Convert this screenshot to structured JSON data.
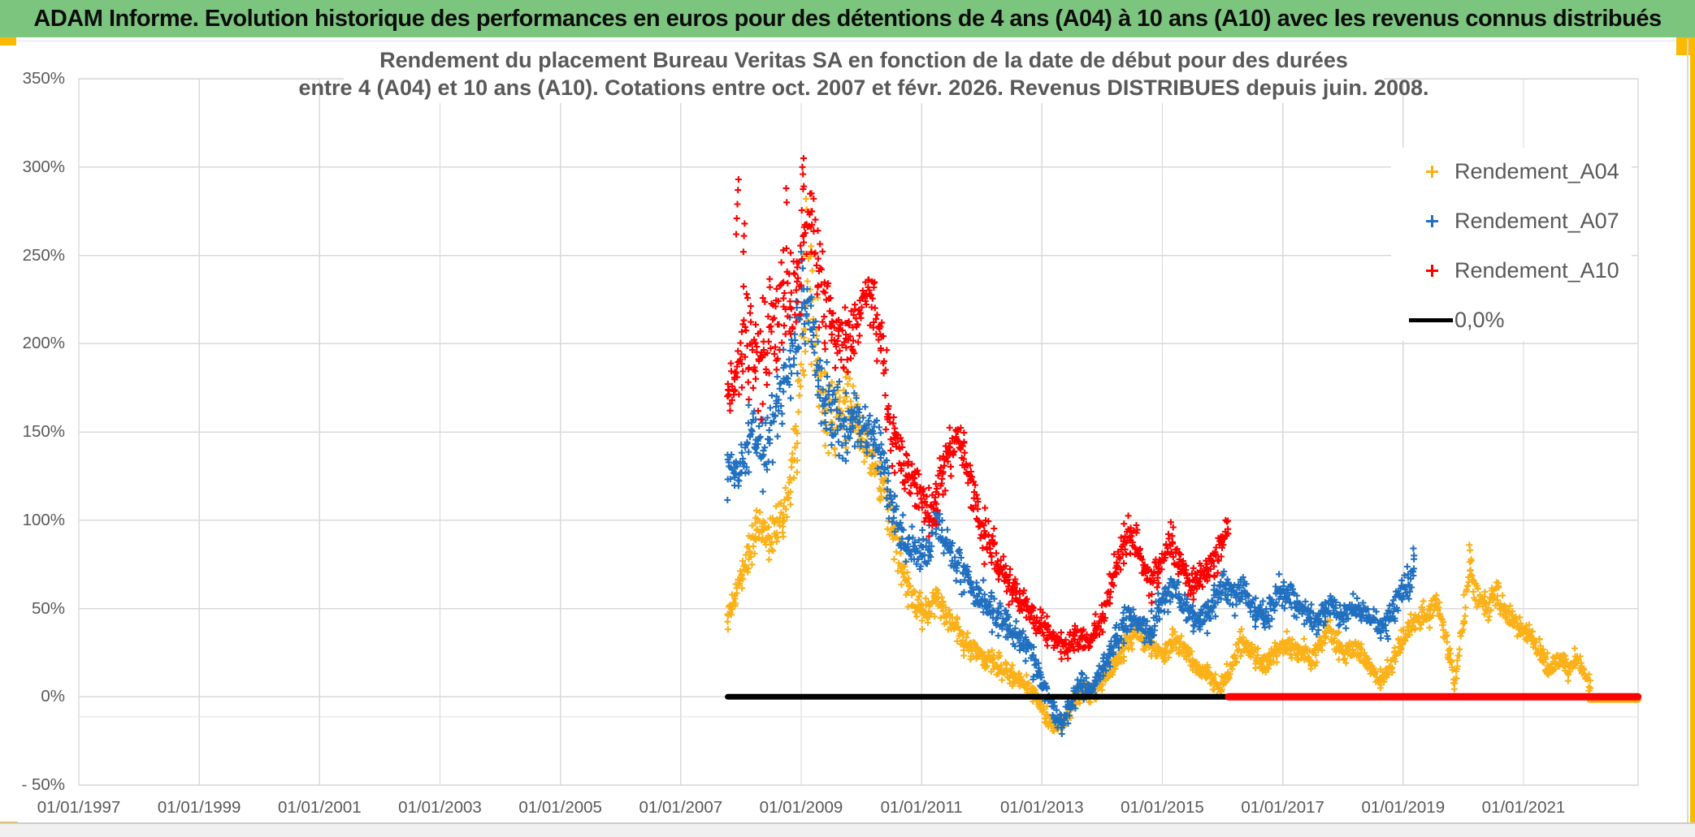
{
  "header": {
    "title": "ADAM Informe. Evolution historique des performances en euros pour des détentions de 4 ans (A04) à 10 ans (A10) avec les revenus connus distribués",
    "bg_color": "#7CC57F"
  },
  "frame": {
    "accent_color": "#FBBA00"
  },
  "chart_data": {
    "type": "scatter",
    "title_line1": "Rendement du placement Bureau Veritas SA en fonction de la date de début pour des durées",
    "title_line2": "entre 4 (A04) et 10 ans (A10). Cotations entre oct. 2007 et févr. 2026. Revenus DISTRIBUES depuis juin. 2008.",
    "text_color": "#595959",
    "gridline_color": "#D9D9D9",
    "grid": true,
    "legend_position": "upper-right",
    "x_range": [
      1997,
      2022.9
    ],
    "y_range": [
      -50,
      350
    ],
    "x_tick_years": [
      1997,
      1999,
      2001,
      2003,
      2005,
      2007,
      2009,
      2011,
      2013,
      2015,
      2017,
      2019,
      2021
    ],
    "x_tick_labels": [
      "01/01/1997",
      "01/01/1999",
      "01/01/2001",
      "01/01/2003",
      "01/01/2005",
      "01/01/2007",
      "01/01/2009",
      "01/01/2011",
      "01/01/2013",
      "01/01/2015",
      "01/01/2017",
      "01/01/2019",
      "01/01/2021"
    ],
    "y_ticks": [
      {
        "label": "350%",
        "value": 350
      },
      {
        "label": "300%",
        "value": 300
      },
      {
        "label": "250%",
        "value": 250
      },
      {
        "label": "200%",
        "value": 200
      },
      {
        "label": "150%",
        "value": 150
      },
      {
        "label": "100%",
        "value": 100
      },
      {
        "label": "50%",
        "value": 50
      },
      {
        "label": "0%",
        "value": 0
      },
      {
        "label": "- 50%",
        "value": -50
      }
    ],
    "legend": [
      {
        "label": "Rendement_A04",
        "marker": "plus",
        "color": "#FBB117"
      },
      {
        "label": "Rendement_A07",
        "marker": "plus",
        "color": "#2170C0"
      },
      {
        "label": "Rendement_A10",
        "marker": "plus",
        "color": "#FF0000"
      },
      {
        "label": "0,0%",
        "marker": "line",
        "color": "#000000"
      }
    ],
    "zero_line": {
      "label": "0,0%",
      "color": "#000000",
      "value": 0,
      "start": 2007.78,
      "end": 2016.1
    },
    "zero_tails": [
      {
        "series": "Rendement_A04",
        "color": "#FBB117",
        "value": 0,
        "start": 2022.1,
        "end": 2022.9
      },
      {
        "series": "Rendement_A10",
        "color": "#FF0000",
        "value": 0,
        "start": 2016.1,
        "end": 2022.9
      }
    ],
    "series": [
      {
        "name": "Rendement_A04",
        "color": "#FBB117",
        "marker": "plus",
        "start": 2007.78,
        "end": 2022.12,
        "anchors": [
          [
            2007.78,
            45,
            6
          ],
          [
            2007.9,
            55,
            9
          ],
          [
            2008.1,
            80,
            14
          ],
          [
            2008.3,
            95,
            14
          ],
          [
            2008.5,
            90,
            14
          ],
          [
            2008.7,
            105,
            16
          ],
          [
            2008.85,
            125,
            22
          ],
          [
            2009.0,
            195,
            45
          ],
          [
            2009.1,
            235,
            40
          ],
          [
            2009.2,
            225,
            40
          ],
          [
            2009.35,
            170,
            28
          ],
          [
            2009.5,
            150,
            24
          ],
          [
            2009.65,
            160,
            24
          ],
          [
            2009.8,
            168,
            22
          ],
          [
            2010.0,
            150,
            20
          ],
          [
            2010.2,
            132,
            18
          ],
          [
            2010.4,
            110,
            16
          ],
          [
            2010.6,
            85,
            14
          ],
          [
            2010.8,
            60,
            12
          ],
          [
            2011.0,
            46,
            11
          ],
          [
            2011.25,
            55,
            10
          ],
          [
            2011.5,
            42,
            10
          ],
          [
            2011.75,
            30,
            9
          ],
          [
            2012.0,
            22,
            9
          ],
          [
            2012.3,
            17,
            8
          ],
          [
            2012.6,
            10,
            8
          ],
          [
            2012.85,
            2,
            7
          ],
          [
            2013.05,
            -10,
            7
          ],
          [
            2013.2,
            -17,
            6
          ],
          [
            2013.4,
            -12,
            6
          ],
          [
            2013.55,
            -3,
            6
          ],
          [
            2013.7,
            4,
            6
          ],
          [
            2013.85,
            0,
            6
          ],
          [
            2014.0,
            8,
            6
          ],
          [
            2014.2,
            18,
            7
          ],
          [
            2014.4,
            30,
            8
          ],
          [
            2014.6,
            38,
            8
          ],
          [
            2014.8,
            28,
            7
          ],
          [
            2015.0,
            25,
            7
          ],
          [
            2015.2,
            32,
            8
          ],
          [
            2015.4,
            25,
            7
          ],
          [
            2015.6,
            17,
            7
          ],
          [
            2015.8,
            11,
            7
          ],
          [
            2015.95,
            4,
            6
          ],
          [
            2016.1,
            14,
            7
          ],
          [
            2016.3,
            30,
            9
          ],
          [
            2016.5,
            25,
            8
          ],
          [
            2016.7,
            18,
            8
          ],
          [
            2016.9,
            25,
            8
          ],
          [
            2017.1,
            30,
            8
          ],
          [
            2017.3,
            25,
            8
          ],
          [
            2017.5,
            21,
            8
          ],
          [
            2017.75,
            38,
            8
          ],
          [
            2018.0,
            25,
            8
          ],
          [
            2018.2,
            28,
            8
          ],
          [
            2018.4,
            21,
            7
          ],
          [
            2018.6,
            8,
            6
          ],
          [
            2018.8,
            18,
            7
          ],
          [
            2019.0,
            34,
            9
          ],
          [
            2019.2,
            42,
            9
          ],
          [
            2019.4,
            47,
            9
          ],
          [
            2019.55,
            54,
            9
          ],
          [
            2019.7,
            35,
            9
          ],
          [
            2019.85,
            8,
            7
          ],
          [
            2020.0,
            40,
            13
          ],
          [
            2020.1,
            70,
            13
          ],
          [
            2020.25,
            55,
            11
          ],
          [
            2020.4,
            50,
            10
          ],
          [
            2020.55,
            61,
            10
          ],
          [
            2020.7,
            48,
            10
          ],
          [
            2020.85,
            42,
            9
          ],
          [
            2021.0,
            38,
            9
          ],
          [
            2021.15,
            32,
            8
          ],
          [
            2021.3,
            25,
            8
          ],
          [
            2021.45,
            15,
            7
          ],
          [
            2021.6,
            22,
            8
          ],
          [
            2021.75,
            14,
            7
          ],
          [
            2021.9,
            23,
            7
          ],
          [
            2022.0,
            12,
            6
          ],
          [
            2022.12,
            7,
            4
          ]
        ],
        "outliers": [
          [
            2009.08,
            282
          ],
          [
            2009.09,
            276
          ],
          [
            2020.1,
            86
          ],
          [
            2020.11,
            83
          ]
        ]
      },
      {
        "name": "Rendement_A07",
        "color": "#2170C0",
        "marker": "plus",
        "start": 2007.78,
        "end": 2019.2,
        "anchors": [
          [
            2007.78,
            130,
            14
          ],
          [
            2008.0,
            124,
            18
          ],
          [
            2008.2,
            148,
            22
          ],
          [
            2008.4,
            140,
            22
          ],
          [
            2008.6,
            163,
            26
          ],
          [
            2008.8,
            185,
            28
          ],
          [
            2009.0,
            222,
            28
          ],
          [
            2009.15,
            212,
            28
          ],
          [
            2009.3,
            180,
            24
          ],
          [
            2009.5,
            160,
            23
          ],
          [
            2009.7,
            150,
            21
          ],
          [
            2009.9,
            158,
            21
          ],
          [
            2010.1,
            150,
            20
          ],
          [
            2010.3,
            143,
            19
          ],
          [
            2010.5,
            110,
            18
          ],
          [
            2010.7,
            90,
            15
          ],
          [
            2010.9,
            80,
            14
          ],
          [
            2011.1,
            86,
            14
          ],
          [
            2011.25,
            99,
            13
          ],
          [
            2011.5,
            80,
            14
          ],
          [
            2011.75,
            64,
            13
          ],
          [
            2012.0,
            55,
            13
          ],
          [
            2012.25,
            47,
            12
          ],
          [
            2012.5,
            38,
            11
          ],
          [
            2012.75,
            27,
            10
          ],
          [
            2013.0,
            9,
            9
          ],
          [
            2013.2,
            -9,
            8
          ],
          [
            2013.35,
            -15,
            7
          ],
          [
            2013.5,
            0,
            9
          ],
          [
            2013.65,
            8,
            8
          ],
          [
            2013.8,
            2,
            8
          ],
          [
            2014.0,
            15,
            8
          ],
          [
            2014.2,
            30,
            9
          ],
          [
            2014.4,
            45,
            10
          ],
          [
            2014.6,
            42,
            9
          ],
          [
            2014.8,
            35,
            9
          ],
          [
            2015.0,
            54,
            11
          ],
          [
            2015.2,
            62,
            11
          ],
          [
            2015.4,
            50,
            10
          ],
          [
            2015.6,
            42,
            9
          ],
          [
            2015.8,
            48,
            10
          ],
          [
            2016.0,
            67,
            11
          ],
          [
            2016.15,
            58,
            10
          ],
          [
            2016.35,
            61,
            11
          ],
          [
            2016.55,
            48,
            9
          ],
          [
            2016.75,
            45,
            9
          ],
          [
            2016.95,
            61,
            10
          ],
          [
            2017.15,
            55,
            10
          ],
          [
            2017.35,
            48,
            9
          ],
          [
            2017.55,
            42,
            9
          ],
          [
            2017.75,
            51,
            9
          ],
          [
            2018.0,
            45,
            9
          ],
          [
            2018.2,
            51,
            9
          ],
          [
            2018.4,
            47,
            9
          ],
          [
            2018.6,
            40,
            8
          ],
          [
            2018.8,
            45,
            9
          ],
          [
            2019.0,
            61,
            11
          ],
          [
            2019.2,
            73,
            9
          ]
        ],
        "outliers": [
          [
            2009.0,
            252
          ],
          [
            2009.01,
            247
          ],
          [
            2013.33,
            -21
          ],
          [
            2019.17,
            84
          ],
          [
            2019.18,
            80
          ]
        ]
      },
      {
        "name": "Rendement_A10",
        "color": "#FF0000",
        "marker": "plus",
        "start": 2007.78,
        "end": 2016.1,
        "anchors": [
          [
            2007.78,
            165,
            16
          ],
          [
            2007.95,
            182,
            26
          ],
          [
            2008.1,
            210,
            40
          ],
          [
            2008.3,
            185,
            32
          ],
          [
            2008.5,
            202,
            32
          ],
          [
            2008.72,
            235,
            40
          ],
          [
            2008.9,
            222,
            38
          ],
          [
            2009.05,
            272,
            28
          ],
          [
            2009.18,
            265,
            28
          ],
          [
            2009.3,
            235,
            28
          ],
          [
            2009.5,
            214,
            28
          ],
          [
            2009.7,
            200,
            24
          ],
          [
            2009.9,
            208,
            26
          ],
          [
            2010.1,
            232,
            20
          ],
          [
            2010.3,
            208,
            24
          ],
          [
            2010.5,
            150,
            24
          ],
          [
            2010.7,
            130,
            18
          ],
          [
            2010.9,
            119,
            16
          ],
          [
            2011.1,
            105,
            16
          ],
          [
            2011.4,
            130,
            18
          ],
          [
            2011.62,
            148,
            13
          ],
          [
            2011.8,
            124,
            18
          ],
          [
            2012.0,
            95,
            16
          ],
          [
            2012.2,
            80,
            16
          ],
          [
            2012.4,
            69,
            14
          ],
          [
            2012.6,
            55,
            13
          ],
          [
            2012.8,
            48,
            11
          ],
          [
            2013.0,
            42,
            11
          ],
          [
            2013.2,
            32,
            9
          ],
          [
            2013.4,
            28,
            8
          ],
          [
            2013.6,
            35,
            9
          ],
          [
            2013.8,
            30,
            8
          ],
          [
            2014.0,
            45,
            10
          ],
          [
            2014.2,
            70,
            12
          ],
          [
            2014.45,
            94,
            12
          ],
          [
            2014.6,
            84,
            12
          ],
          [
            2014.8,
            65,
            11
          ],
          [
            2015.0,
            79,
            13
          ],
          [
            2015.15,
            89,
            12
          ],
          [
            2015.3,
            74,
            12
          ],
          [
            2015.5,
            61,
            11
          ],
          [
            2015.7,
            69,
            11
          ],
          [
            2015.9,
            79,
            12
          ],
          [
            2016.08,
            96,
            12
          ]
        ],
        "outliers": [
          [
            2007.92,
            262
          ],
          [
            2007.93,
            271
          ],
          [
            2007.94,
            279
          ],
          [
            2007.95,
            287
          ],
          [
            2007.96,
            293
          ],
          [
            2008.04,
            252
          ],
          [
            2008.05,
            261
          ],
          [
            2008.06,
            268
          ],
          [
            2008.75,
            288
          ],
          [
            2008.76,
            280
          ],
          [
            2009.02,
            300
          ],
          [
            2009.03,
            296
          ],
          [
            2009.04,
            305
          ]
        ]
      }
    ]
  }
}
